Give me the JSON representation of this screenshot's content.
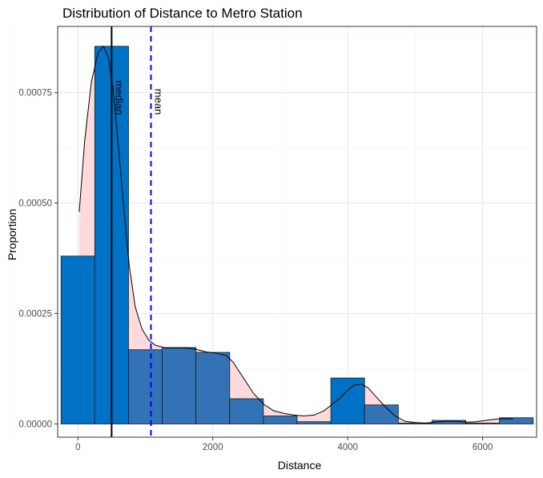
{
  "chart_data": {
    "type": "histogram",
    "title": "Distribution of Distance to Metro Station",
    "xlabel": "Distance",
    "ylabel": "Proportion",
    "xlim": [
      -300,
      6800
    ],
    "ylim": [
      -3e-05,
      0.0009
    ],
    "x_ticks": [
      0,
      2000,
      4000,
      6000
    ],
    "x_tick_labels": [
      "0",
      "2000",
      "4000",
      "6000"
    ],
    "y_ticks": [
      0,
      0.00025,
      0.0005,
      0.00075
    ],
    "y_tick_labels": [
      "0.00000",
      "0.00025",
      "0.00050",
      "0.00075"
    ],
    "grid": true,
    "bins": [
      {
        "start": -250,
        "end": 250,
        "value": 0.00038
      },
      {
        "start": 250,
        "end": 750,
        "value": 0.000855
      },
      {
        "start": 750,
        "end": 1250,
        "value": 0.000168
      },
      {
        "start": 1250,
        "end": 1750,
        "value": 0.000173
      },
      {
        "start": 1750,
        "end": 2250,
        "value": 0.000162
      },
      {
        "start": 2250,
        "end": 2750,
        "value": 5.7e-05
      },
      {
        "start": 2750,
        "end": 3250,
        "value": 1.8e-05
      },
      {
        "start": 3250,
        "end": 3750,
        "value": 5e-06
      },
      {
        "start": 3750,
        "end": 4250,
        "value": 0.000104
      },
      {
        "start": 4250,
        "end": 4750,
        "value": 4.3e-05
      },
      {
        "start": 4750,
        "end": 5250,
        "value": 2e-06
      },
      {
        "start": 5250,
        "end": 5750,
        "value": 8e-06
      },
      {
        "start": 5750,
        "end": 6250,
        "value": 2e-06
      },
      {
        "start": 6250,
        "end": 6750,
        "value": 1.4e-05
      }
    ],
    "bar_colors": [
      "#0072c6",
      "#0072c6",
      "#3372b5",
      "#3372b5",
      "#3372b5",
      "#3372b5",
      "#3372b5",
      "#3372b5",
      "#0072c6",
      "#3372b5",
      "#3372b5",
      "#3372b5",
      "#3372b5",
      "#3372b5"
    ],
    "density": {
      "fill": "#ffdada",
      "x": [
        20,
        100,
        200,
        300,
        380,
        450,
        520,
        600,
        680,
        760,
        850,
        950,
        1050,
        1150,
        1300,
        1450,
        1600,
        1750,
        1900,
        2050,
        2200,
        2300,
        2450,
        2600,
        2750,
        2900,
        3050,
        3200,
        3350,
        3500,
        3650,
        3800,
        3900,
        4000,
        4100,
        4200,
        4300,
        4400,
        4550,
        4700,
        4850,
        5000,
        5150,
        5300,
        5450,
        5600,
        5750,
        5900,
        6050,
        6200,
        6350,
        6450
      ],
      "y": [
        0.00048,
        0.00064,
        0.000775,
        0.00084,
        0.000855,
        0.00083,
        0.00076,
        0.00063,
        0.00049,
        0.00036,
        0.000265,
        0.000215,
        0.00019,
        0.000178,
        0.000172,
        0.000172,
        0.000172,
        0.000169,
        0.000163,
        0.00016,
        0.000155,
        0.00014,
        0.000105,
        7e-05,
        4.5e-05,
        3e-05,
        2.4e-05,
        2e-05,
        1.8e-05,
        2e-05,
        3e-05,
        4.8e-05,
        6e-05,
        7.7e-05,
        8.8e-05,
        9e-05,
        8.2e-05,
        6.5e-05,
        4e-05,
        1.8e-05,
        6e-06,
        3e-06,
        2e-06,
        4e-06,
        6e-06,
        6e-06,
        4e-06,
        5e-06,
        8e-06,
        1.1e-05,
        1.2e-05,
        1.1e-05
      ]
    },
    "median": {
      "x": 500,
      "label": "median",
      "color": "#000000"
    },
    "mean": {
      "x": 1083,
      "label": "mean",
      "color": "#0000ff"
    }
  }
}
